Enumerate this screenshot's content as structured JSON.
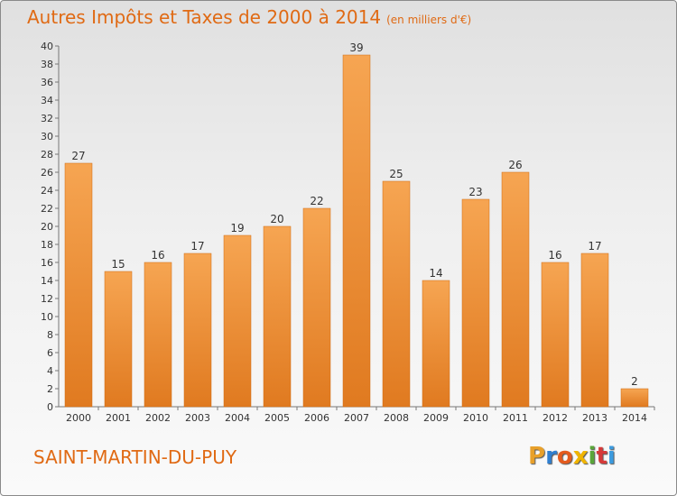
{
  "header": {
    "title": "Autres Impôts et Taxes de 2000 à 2014",
    "subtitle": "(en milliers d'€)"
  },
  "footer": {
    "commune": "SAINT-MARTIN-DU-PUY",
    "brand": [
      "P",
      "r",
      "o",
      "x",
      "i",
      "t",
      "i"
    ],
    "brand_colors": [
      "#e8a02a",
      "#2f7fd0",
      "#e45b1e",
      "#f0b400",
      "#5aa63a",
      "#d63a3a",
      "#3c9be0"
    ]
  },
  "colors": {
    "accent": "#e06a14",
    "bar_light": "#f5a453",
    "bar_dark": "#e07c22"
  },
  "chart_data": {
    "type": "bar",
    "title": "Autres Impôts et Taxes de 2000 à 2014",
    "subtitle": "(en milliers d'€)",
    "categories": [
      "2000",
      "2001",
      "2002",
      "2003",
      "2004",
      "2005",
      "2006",
      "2007",
      "2008",
      "2009",
      "2010",
      "2011",
      "2012",
      "2013",
      "2014"
    ],
    "values": [
      27,
      15,
      16,
      17,
      19,
      20,
      22,
      39,
      25,
      14,
      23,
      26,
      16,
      17,
      2
    ],
    "ylim": [
      0,
      40
    ],
    "yticks": [
      0,
      2,
      4,
      6,
      8,
      10,
      12,
      14,
      16,
      18,
      20,
      22,
      24,
      26,
      28,
      30,
      32,
      34,
      36,
      38,
      40
    ],
    "grid": false,
    "legend": "none"
  }
}
